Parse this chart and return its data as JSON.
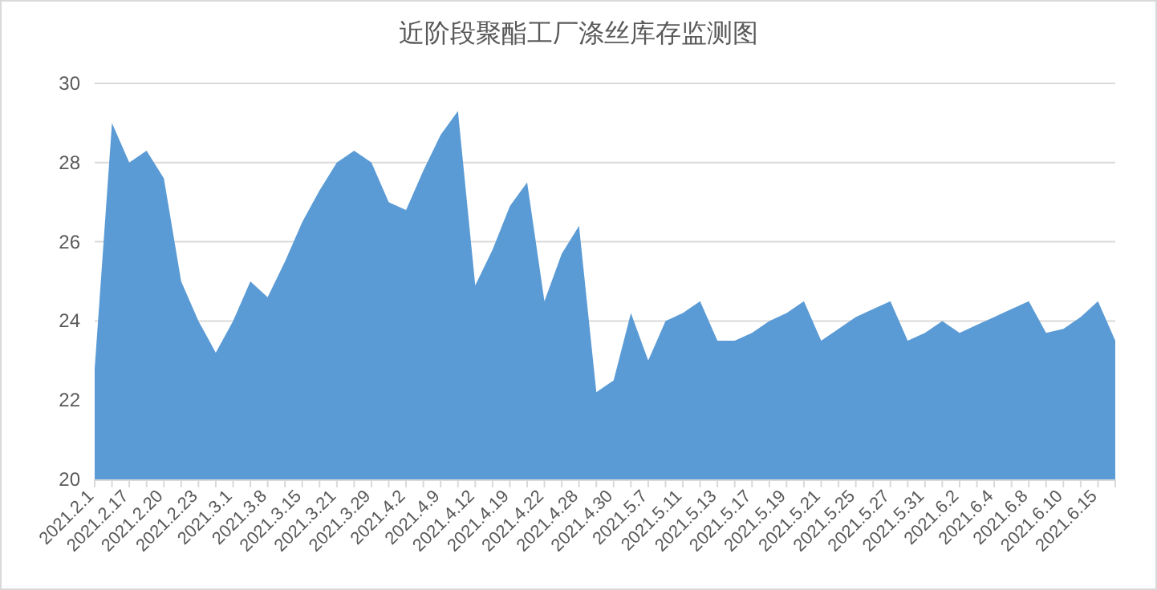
{
  "chart_data": {
    "type": "area",
    "title": "近阶段聚酯工厂涤丝库存监测图",
    "color": "#5b9bd5",
    "grid": "y",
    "ylim": [
      20,
      30
    ],
    "yticks": [
      20,
      22,
      24,
      26,
      28,
      30
    ],
    "categories": [
      "2021.2.1",
      null,
      "2021.2.17",
      null,
      "2021.2.20",
      null,
      "2021.2.23",
      null,
      "2021.3.1",
      null,
      "2021.3.8",
      null,
      "2021.3.15",
      null,
      "2021.3.21",
      null,
      "2021.3.29",
      null,
      "2021.4.2",
      null,
      "2021.4.9",
      null,
      "2021.4.12",
      null,
      "2021.4.19",
      null,
      "2021.4.22",
      null,
      "2021.4.28",
      null,
      "2021.4.30",
      null,
      "2021.5.7",
      null,
      "2021.5.11",
      null,
      "2021.5.13",
      null,
      "2021.5.17",
      null,
      "2021.5.19",
      null,
      "2021.5.21",
      null,
      "2021.5.25",
      null,
      "2021.5.27",
      null,
      "2021.5.31",
      null,
      "2021.6.2",
      null,
      "2021.6.4",
      null,
      "2021.6.8",
      null,
      "2021.6.10",
      null,
      "2021.6.15",
      null
    ],
    "values": [
      22.8,
      29.0,
      28.0,
      28.3,
      27.6,
      25.0,
      24.0,
      23.2,
      24.0,
      25.0,
      24.6,
      25.5,
      26.5,
      27.3,
      28.0,
      28.3,
      28.0,
      27.0,
      26.8,
      27.8,
      28.7,
      29.3,
      24.9,
      25.8,
      26.9,
      27.5,
      24.5,
      25.7,
      26.4,
      22.2,
      22.5,
      24.2,
      23.0,
      24.0,
      24.2,
      24.5,
      23.5,
      23.5,
      23.7,
      24.0,
      24.2,
      24.5,
      23.5,
      23.8,
      24.1,
      24.3,
      24.5,
      23.5,
      23.7,
      24.0,
      23.7,
      23.9,
      24.1,
      24.3,
      24.5,
      23.7,
      23.8,
      24.1,
      24.5,
      23.5
    ]
  }
}
